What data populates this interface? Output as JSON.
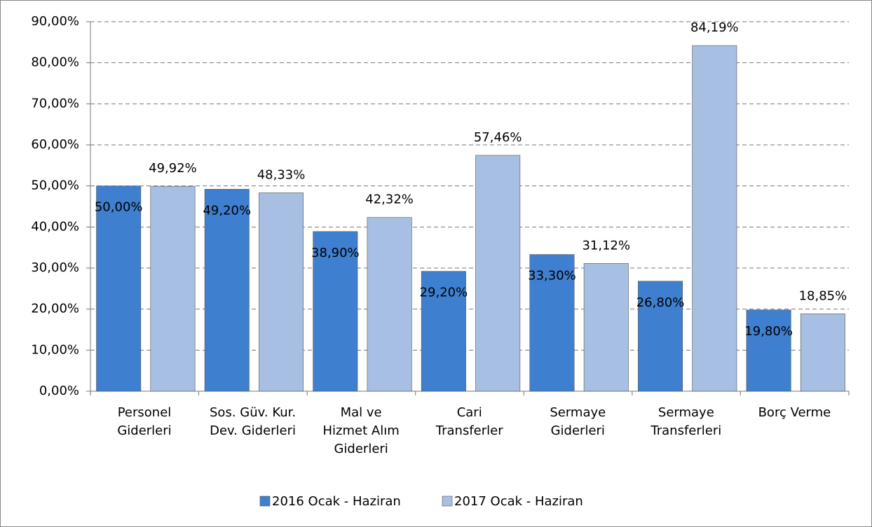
{
  "chart_data": {
    "type": "bar",
    "categories": [
      "Personel\nGiderleri",
      "Sos. Güv. Kur.\nDev. Giderleri",
      "Mal ve\nHizmet Alım\nGiderleri",
      "Cari\nTransferler",
      "Sermaye\nGiderleri",
      "Sermaye\nTransferleri",
      "Borç Verme"
    ],
    "series": [
      {
        "name": "2016 Ocak - Haziran",
        "color": "#3f7fcf",
        "values": [
          50.0,
          49.2,
          38.9,
          29.2,
          33.3,
          26.8,
          19.8
        ],
        "value_labels": [
          "50,00%",
          "49,20%",
          "38,90%",
          "29,20%",
          "33,30%",
          "26,80%",
          "19,80%"
        ]
      },
      {
        "name": "2017 Ocak - Haziran",
        "color": "#a6bfe2",
        "values": [
          49.92,
          48.33,
          42.32,
          57.46,
          31.12,
          84.19,
          18.85
        ],
        "value_labels": [
          "49,92%",
          "48,33%",
          "42,32%",
          "57,46%",
          "31,12%",
          "84,19%",
          "18,85%"
        ]
      }
    ],
    "ylim": [
      0,
      90
    ],
    "yticks": [
      {
        "value": 0,
        "label": "0,00%"
      },
      {
        "value": 10,
        "label": "10,00%"
      },
      {
        "value": 20,
        "label": "20,00%"
      },
      {
        "value": 30,
        "label": "30,00%"
      },
      {
        "value": 40,
        "label": "40,00%"
      },
      {
        "value": 50,
        "label": "50,00%"
      },
      {
        "value": 60,
        "label": "60,00%"
      },
      {
        "value": 70,
        "label": "70,00%"
      },
      {
        "value": 80,
        "label": "80,00%"
      },
      {
        "value": 90,
        "label": "90,00%"
      }
    ],
    "grid": true,
    "legend": "bottom"
  }
}
